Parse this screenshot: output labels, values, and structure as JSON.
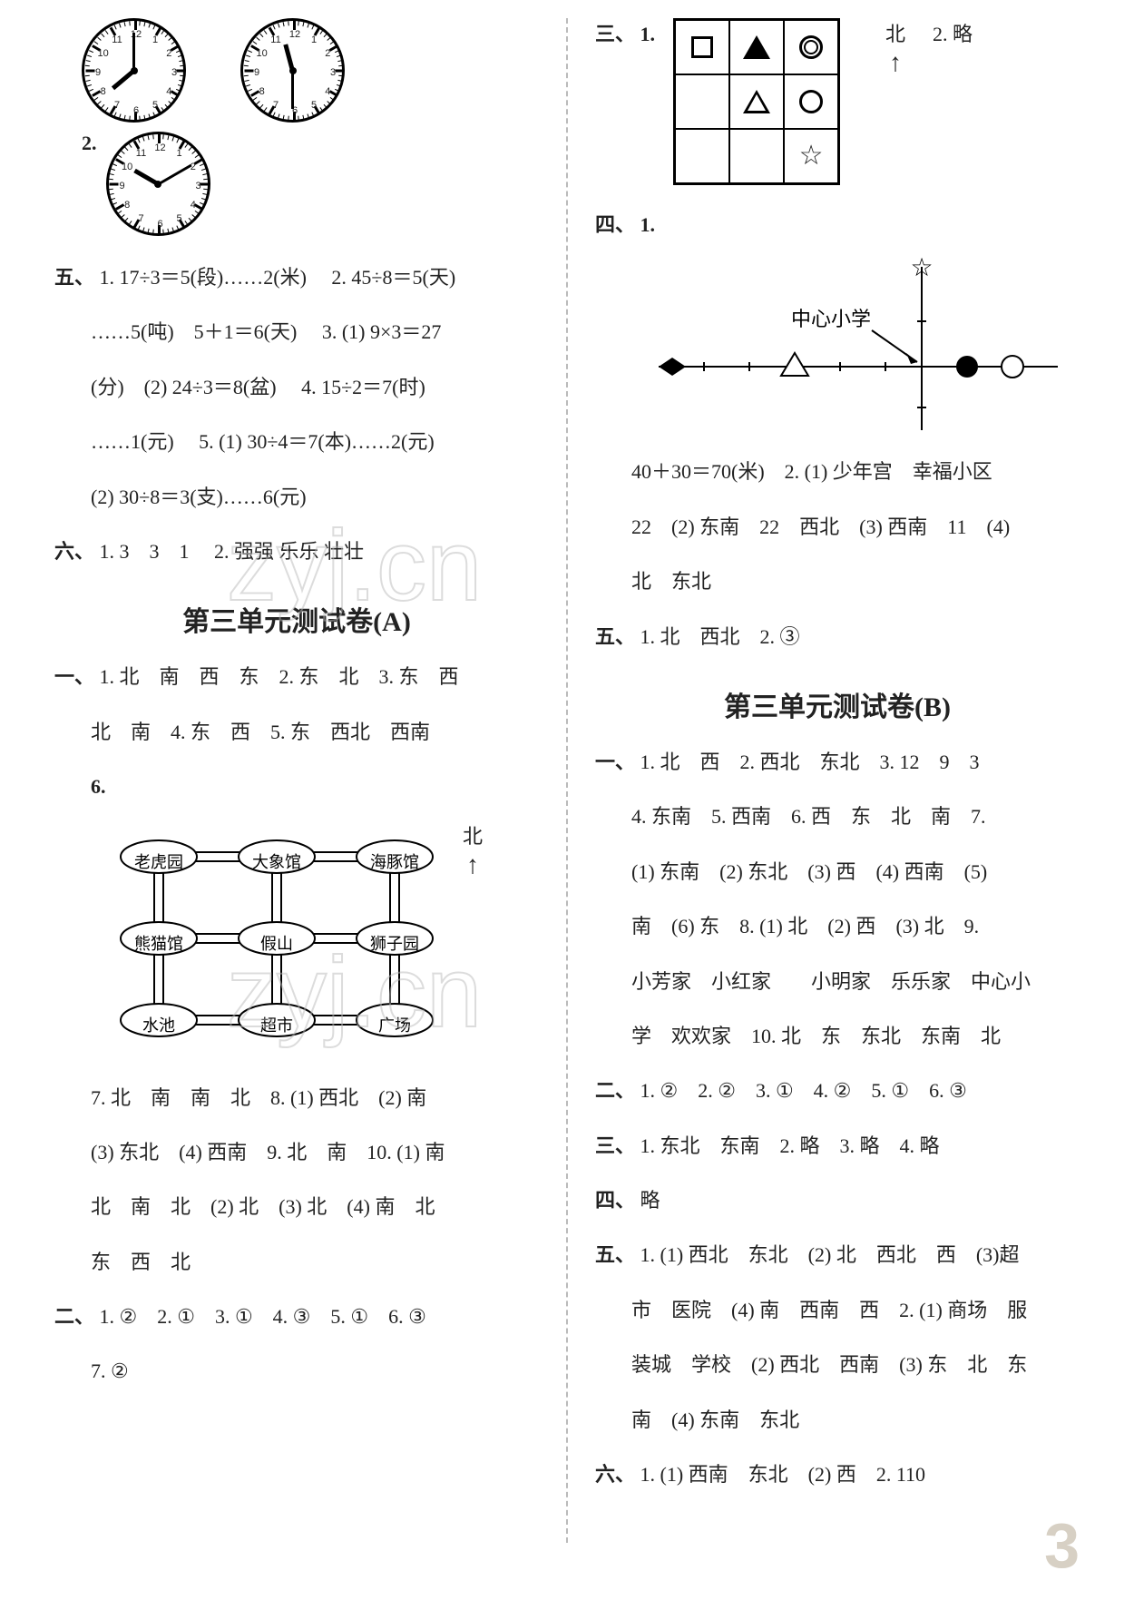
{
  "left": {
    "clock1": {
      "hour_angle": 230,
      "minute_angle": 0
    },
    "clock2": {
      "hour_angle": 345,
      "minute_angle": 180
    },
    "clock3": {
      "hour_angle": 300,
      "minute_angle": 60
    },
    "item2_label": "2.",
    "five": {
      "label": "五、",
      "q1": "1. 17÷3＝5(段)……2(米)",
      "q2": "2. 45÷8＝5(天)",
      "q2b": "……5(吨)　5＋1＝6(天)",
      "q3": "3. (1) 9×3＝27",
      "q3b": "(分)　(2) 24÷3＝8(盆)",
      "q4": "4. 15÷2＝7(时)",
      "q4b": "……1(元)",
      "q5": "5. (1) 30÷4＝7(本)……2(元)",
      "q5b": "(2) 30÷8＝3(支)……6(元)"
    },
    "six": {
      "label": "六、",
      "q1": "1. 3　3　1",
      "q2": "2. 强强 乐乐 壮壮"
    },
    "heading_a": "第三单元测试卷(A)",
    "sectA_one": {
      "label": "一、",
      "l1": "1. 北　南　西　东　2. 东　北　3. 东　西",
      "l2": "北　南　4. 东　西　5. 东　西北　西南",
      "l3": "6."
    },
    "map_labels": [
      "老虎园",
      "大象馆",
      "海豚馆",
      "熊猫馆",
      "假山",
      "狮子园",
      "水池",
      "超市",
      "广场"
    ],
    "north": "北",
    "sectA_one_cont": {
      "l4": "7. 北　南　南　北　8. (1) 西北　(2) 南",
      "l5": "(3) 东北　(4) 西南　9. 北　南　10. (1) 南",
      "l6": "北　南　北　(2) 北　(3) 北　(4) 南　北",
      "l7": "东　西　北"
    },
    "sectA_two": {
      "label": "二、",
      "l1": "1. ②　2. ①　3. ①　4. ③　5. ①　6. ③",
      "l2": "7. ②"
    }
  },
  "right": {
    "sectA_three": {
      "label": "三、",
      "q1": "1.",
      "north": "北",
      "q2": "2. 略"
    },
    "sectA_four": {
      "label": "四、",
      "q1": "1.",
      "school_label": "中心小学",
      "l2": "40＋30＝70(米)　2. (1) 少年宫　幸福小区",
      "l3": "22　(2) 东南　22　西北　(3) 西南　11　(4)",
      "l4": "北　东北"
    },
    "sectA_five": {
      "label": "五、",
      "l1": "1. 北　西北　2. ③"
    },
    "heading_b": "第三单元测试卷(B)",
    "sectB_one": {
      "label": "一、",
      "l1": "1. 北　西　2. 西北　东北　3. 12　9　3",
      "l2": "4. 东南　5. 西南　6. 西　东　北　南　7.",
      "l3": "(1) 东南　(2) 东北　(3) 西　(4) 西南　(5)",
      "l4": "南　(6) 东　8. (1) 北　(2) 西　(3) 北　9.",
      "l5": "小芳家　小红家　　小明家　乐乐家　中心小",
      "l6": "学　欢欢家　10. 北　东　东北　东南　北"
    },
    "sectB_two": {
      "label": "二、",
      "l1": "1. ②　2. ②　3. ①　4. ②　5. ①　6. ③"
    },
    "sectB_three": {
      "label": "三、",
      "l1": "1. 东北　东南　2. 略　3. 略　4. 略"
    },
    "sectB_four": {
      "label": "四、",
      "l1": "略"
    },
    "sectB_five": {
      "label": "五、",
      "l1": "1. (1) 西北　东北　(2) 北　西北　西　(3)超",
      "l2": "市　医院　(4) 南　西南　西　2. (1) 商场　服",
      "l3": "装城　学校　(2) 西北　西南　(3) 东　北　东",
      "l4": "南　(4) 东南　东北"
    },
    "sectB_six": {
      "label": "六、",
      "l1": "1. (1) 西南　东北　(2) 西　2. 110"
    }
  },
  "page_number": "3",
  "watermark": "zyj.cn"
}
